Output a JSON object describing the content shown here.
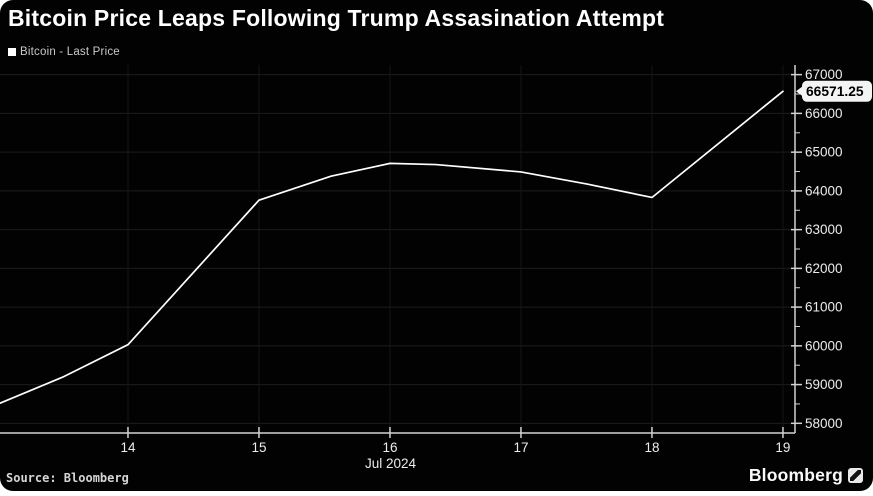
{
  "card": {
    "title": "Bitcoin Price Leaps Following Trump Assasination Attempt",
    "legend": {
      "label": "Bitcoin - Last Price"
    },
    "footer": {
      "source": "Source: Bloomberg",
      "brand": "Bloomberg"
    }
  },
  "chart_data": {
    "type": "line",
    "title": "Bitcoin Price Leaps Following Trump Assasination Attempt",
    "legend_entries": [
      "Bitcoin - Last Price"
    ],
    "legend_position": "top-left",
    "grid": true,
    "xlabel": "Jul 2024",
    "ylabel": "",
    "xlim": [
      13.023,
      19.092
    ],
    "ylim": [
      57750,
      67250
    ],
    "x_ticks": [
      14,
      15,
      16,
      17,
      18,
      19
    ],
    "x_tick_labels": [
      "14",
      "15",
      "16",
      "17",
      "18",
      "19"
    ],
    "y_ticks": [
      58000,
      59000,
      60000,
      61000,
      62000,
      63000,
      64000,
      65000,
      66000,
      67000
    ],
    "y_tick_labels": [
      "58000",
      "59000",
      "60000",
      "61000",
      "62000",
      "63000",
      "64000",
      "65000",
      "66000",
      "67000"
    ],
    "y_minor_ticks": [
      58500,
      59500,
      60500,
      61500,
      62500,
      63500,
      64500,
      65500,
      66500
    ],
    "series": [
      {
        "name": "Bitcoin - Last Price",
        "points": [
          [
            13.023,
            58520
          ],
          [
            13.5,
            59190
          ],
          [
            14.0,
            60030
          ],
          [
            15.0,
            63760
          ],
          [
            15.55,
            64380
          ],
          [
            16.0,
            64710
          ],
          [
            16.35,
            64680
          ],
          [
            17.0,
            64490
          ],
          [
            17.5,
            64180
          ],
          [
            18.0,
            63830
          ],
          [
            19.0,
            66571.25
          ]
        ]
      }
    ],
    "last_price": 66571.25,
    "last_price_label": "66571.25",
    "colors": {
      "background": "#020202",
      "line": "#ffffff",
      "axis": "#d2d2d2",
      "tick_label": "#ececec",
      "grid_h": "#1d1d1d",
      "grid_v": "#161616",
      "badge_bg": "#f4f4f4",
      "badge_text": "#000000"
    }
  }
}
